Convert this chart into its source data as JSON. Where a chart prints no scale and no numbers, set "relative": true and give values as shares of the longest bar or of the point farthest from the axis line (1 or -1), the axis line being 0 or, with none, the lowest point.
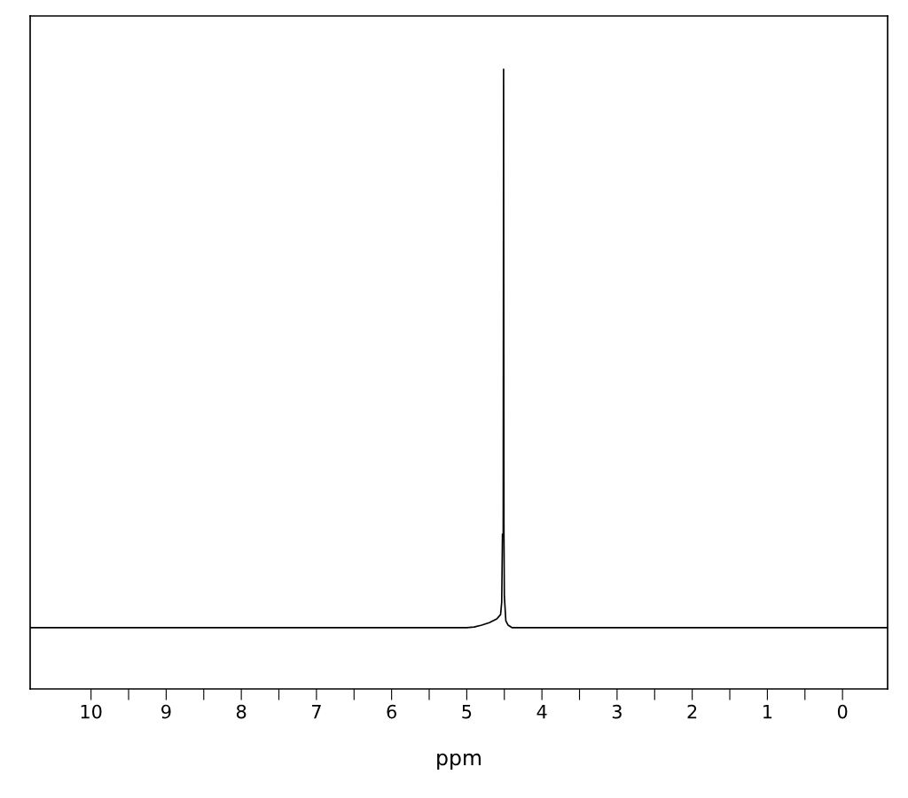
{
  "chart_data": {
    "type": "line",
    "xlabel": "ppm",
    "relative": true,
    "tick_labels": "x",
    "grid": false,
    "legend": false,
    "marker": "none",
    "line_style": "solid",
    "xlim": [
      10.81,
      -0.6
    ],
    "xticks": [
      10,
      {
        "value": 9.5,
        "label": null
      },
      9,
      {
        "value": 8.5,
        "label": null
      },
      8,
      {
        "value": 7.5,
        "label": null
      },
      7,
      {
        "value": 6.5,
        "label": null
      },
      6,
      {
        "value": 5.5,
        "label": null
      },
      5,
      {
        "value": 4.5,
        "label": null
      },
      4,
      {
        "value": 3.5,
        "label": null
      },
      3,
      {
        "value": 2.5,
        "label": null
      },
      2,
      {
        "value": 1.5,
        "label": null
      },
      1,
      {
        "value": 0.5,
        "label": null
      },
      0
    ],
    "series": [
      {
        "color": "#000000",
        "x": [
          10.81,
          9.5,
          8.0,
          6.5,
          5.5,
          5.0,
          4.9,
          4.8,
          4.7,
          4.6,
          4.55,
          4.535,
          4.525,
          4.515,
          4.51,
          4.505,
          4.5,
          4.48,
          4.45,
          4.4,
          3.5,
          2.0,
          0.5,
          -0.6
        ],
        "values": [
          0.099,
          0.099,
          0.099,
          0.099,
          0.099,
          0.099,
          0.1,
          0.103,
          0.107,
          0.113,
          0.12,
          0.14,
          0.25,
          0.25,
          1.0,
          0.25,
          0.15,
          0.11,
          0.103,
          0.099,
          0.099,
          0.099,
          0.099,
          0.099
        ]
      }
    ]
  }
}
